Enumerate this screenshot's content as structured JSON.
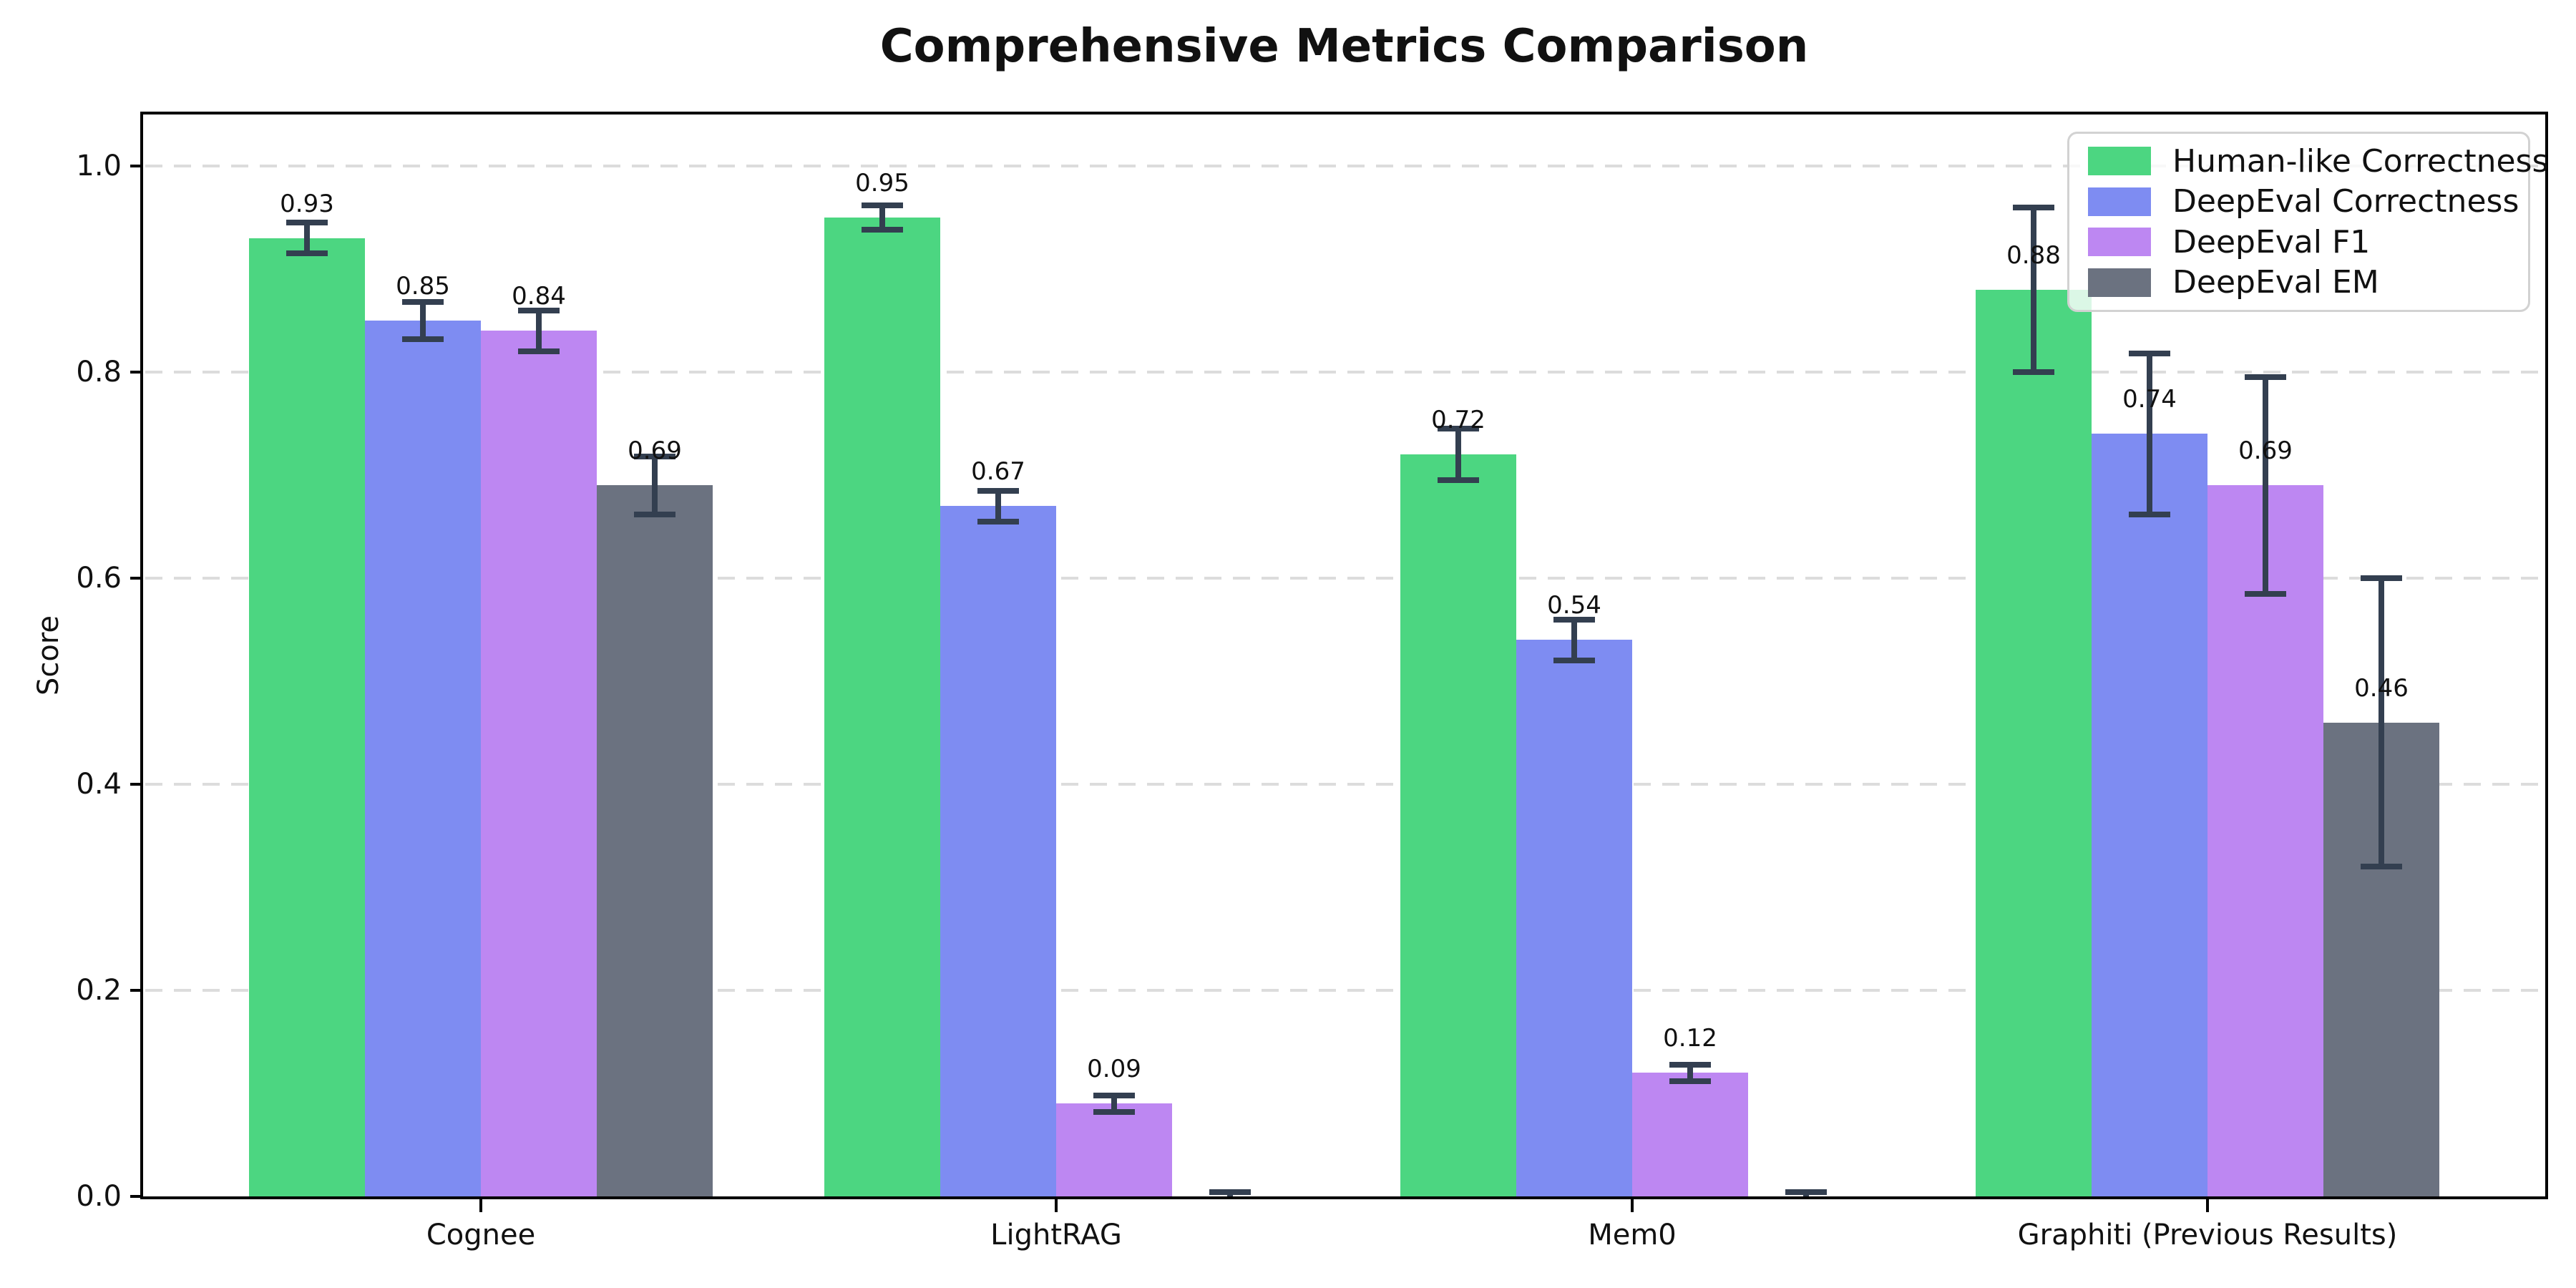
{
  "chart_data": {
    "type": "bar",
    "title": "Comprehensive Metrics Comparison",
    "ylabel": "Score",
    "xlabel": "",
    "ylim": [
      0,
      1.05
    ],
    "yticks": [
      {
        "value": 0.0,
        "label": "0.0"
      },
      {
        "value": 0.2,
        "label": "0.2"
      },
      {
        "value": 0.4,
        "label": "0.4"
      },
      {
        "value": 0.6,
        "label": "0.6"
      },
      {
        "value": 0.8,
        "label": "0.8"
      },
      {
        "value": 1.0,
        "label": "1.0"
      }
    ],
    "grid": "horizontal-dashed",
    "legend_position": "upper-right",
    "categories": [
      "Cognee",
      "LightRAG",
      "Mem0",
      "Graphiti (Previous Results)"
    ],
    "series": [
      {
        "name": "Human-like Correctness",
        "color": "#4cd681",
        "values": [
          0.93,
          0.95,
          0.72,
          0.88
        ],
        "errors": [
          0.015,
          0.012,
          0.025,
          0.08
        ],
        "labels": [
          "0.93",
          "0.95",
          "0.72",
          "0.88"
        ]
      },
      {
        "name": "DeepEval Correctness",
        "color": "#7e8cf2",
        "values": [
          0.85,
          0.67,
          0.54,
          0.74
        ],
        "errors": [
          0.018,
          0.015,
          0.02,
          0.078
        ],
        "labels": [
          "0.85",
          "0.67",
          "0.54",
          "0.74"
        ]
      },
      {
        "name": "DeepEval F1",
        "color": "#bd87f2",
        "values": [
          0.84,
          0.09,
          0.12,
          0.69
        ],
        "errors": [
          0.02,
          0.008,
          0.008,
          0.105
        ],
        "labels": [
          "0.84",
          "0.09",
          "0.12",
          "0.69"
        ]
      },
      {
        "name": "DeepEval EM",
        "color": "#6b7280",
        "values": [
          0.69,
          0.0,
          0.0,
          0.46
        ],
        "errors": [
          0.028,
          0.004,
          0.004,
          0.14
        ],
        "labels": [
          "0.69",
          "",
          "",
          "0.46"
        ]
      }
    ],
    "error_bar_color": "#333f50",
    "grid_color": "#dcdcdc",
    "axis_color": "#000000",
    "text_color": "#111111",
    "background_color": "#ffffff"
  }
}
